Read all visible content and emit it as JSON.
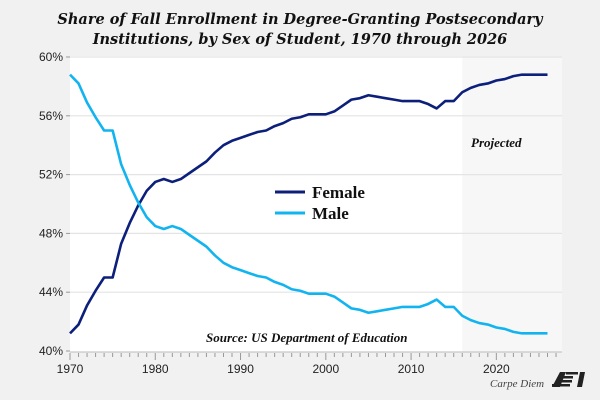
{
  "chart_data": {
    "type": "line",
    "title": [
      "Share of Fall Enrollment in Degree-Granting Postsecondary",
      "Institutions, by Sex of Student, 1970 through 2026"
    ],
    "xlabel": "",
    "ylabel": "",
    "xlim": [
      1970,
      2027.7
    ],
    "ylim": [
      40,
      60
    ],
    "x_ticks": [
      "1970",
      "1980",
      "1990",
      "2000",
      "2010",
      "2020"
    ],
    "y_ticks": [
      "40%",
      "44%",
      "48%",
      "52%",
      "56%",
      "60%"
    ],
    "grid": true,
    "legend": [
      "Female",
      "Male"
    ],
    "legend_placement": "center",
    "projected_from": 2016,
    "projected_label": "Projected",
    "source": "Source: US Department of Education",
    "branding": "Carpe Diem",
    "logo_text": "AEI",
    "x": [
      1970,
      1971,
      1972,
      1973,
      1974,
      1975,
      1976,
      1977,
      1978,
      1979,
      1980,
      1981,
      1982,
      1983,
      1984,
      1985,
      1986,
      1987,
      1988,
      1989,
      1990,
      1991,
      1992,
      1993,
      1994,
      1995,
      1996,
      1997,
      1998,
      1999,
      2000,
      2001,
      2002,
      2003,
      2004,
      2005,
      2006,
      2007,
      2008,
      2009,
      2010,
      2011,
      2012,
      2013,
      2014,
      2015,
      2016,
      2017,
      2018,
      2019,
      2020,
      2021,
      2022,
      2023,
      2024,
      2025,
      2026
    ],
    "series": [
      {
        "name": "Female",
        "color": "#0c1f7a",
        "values": [
          41.2,
          41.8,
          43.1,
          44.1,
          45.0,
          45.0,
          47.3,
          48.7,
          49.9,
          50.9,
          51.5,
          51.7,
          51.5,
          51.7,
          52.1,
          52.5,
          52.9,
          53.5,
          54.0,
          54.3,
          54.5,
          54.7,
          54.9,
          55.0,
          55.3,
          55.5,
          55.8,
          55.9,
          56.1,
          56.1,
          56.1,
          56.3,
          56.7,
          57.1,
          57.2,
          57.4,
          57.3,
          57.2,
          57.1,
          57.0,
          57.0,
          57.0,
          56.8,
          56.5,
          57.0,
          57.0,
          57.6,
          57.9,
          58.1,
          58.2,
          58.4,
          58.5,
          58.7,
          58.8,
          58.8,
          58.8,
          58.8
        ]
      },
      {
        "name": "Male",
        "color": "#12b4f0",
        "values": [
          58.8,
          58.2,
          56.9,
          55.9,
          55.0,
          55.0,
          52.7,
          51.3,
          50.1,
          49.1,
          48.5,
          48.3,
          48.5,
          48.3,
          47.9,
          47.5,
          47.1,
          46.5,
          46.0,
          45.7,
          45.5,
          45.3,
          45.1,
          45.0,
          44.7,
          44.5,
          44.2,
          44.1,
          43.9,
          43.9,
          43.9,
          43.7,
          43.3,
          42.9,
          42.8,
          42.6,
          42.7,
          42.8,
          42.9,
          43.0,
          43.0,
          43.0,
          43.2,
          43.5,
          43.0,
          43.0,
          42.4,
          42.1,
          41.9,
          41.8,
          41.6,
          41.5,
          41.3,
          41.2,
          41.2,
          41.2,
          41.2
        ]
      }
    ]
  }
}
